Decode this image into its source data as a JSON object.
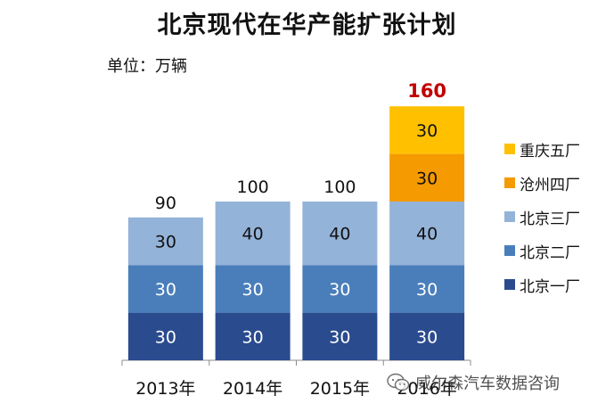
{
  "title": "北京现代在华产能扩张计划",
  "unit_label": "单位：万辆",
  "watermark": "威尔森汽车数据咨询",
  "chart_data": {
    "type": "bar",
    "stacked": true,
    "title": "北京现代在华产能扩张计划",
    "ylabel": "单位：万辆",
    "categories": [
      "2013年",
      "2014年",
      "2015年",
      "2016年"
    ],
    "series": [
      {
        "name": "北京一厂",
        "color": "#2b4b8f",
        "values": [
          30,
          30,
          30,
          30
        ]
      },
      {
        "name": "北京二厂",
        "color": "#4a7ebb",
        "values": [
          30,
          30,
          30,
          30
        ]
      },
      {
        "name": "北京三厂",
        "color": "#94b3d9",
        "values": [
          30,
          40,
          40,
          40
        ]
      },
      {
        "name": "沧州四厂",
        "color": "#f59a00",
        "values": [
          0,
          0,
          0,
          30
        ]
      },
      {
        "name": "重庆五厂",
        "color": "#ffc000",
        "values": [
          0,
          0,
          0,
          30
        ]
      }
    ],
    "totals": [
      "90",
      "100",
      "100",
      "160"
    ],
    "highlight_total_color": "#c00000",
    "ylim": [
      0,
      160
    ],
    "legend_position": "right"
  }
}
